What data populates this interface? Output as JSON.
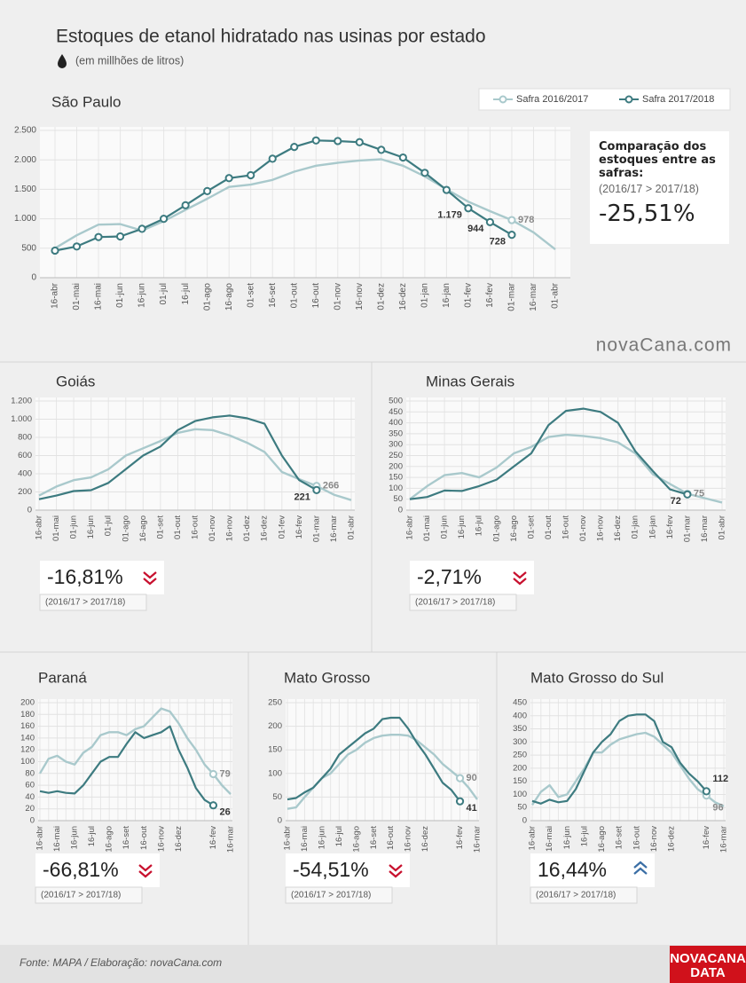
{
  "header": {
    "title": "Estoques de etanol hidratado nas usinas por estado",
    "subtitle": "(em millhões de litros)"
  },
  "watermark": "novaCana.com",
  "footer": {
    "source": "Fonte: MAPA  / Elaboração: novaCana.com",
    "logo": [
      "NOVACANA",
      "DATA"
    ]
  },
  "chart_data": [
    {
      "type": "line",
      "title": "São Paulo",
      "legend": "top-right",
      "grid": true,
      "comparison_title": "Comparação dos estoques entre as safras:",
      "change": "-25,51%",
      "change_note": "(2016/17 > 2017/18)",
      "trend": "down",
      "categories": [
        "16-abr",
        "01-mai",
        "16-mai",
        "01-jun",
        "16-jun",
        "01-jul",
        "16-jul",
        "01-ago",
        "16-ago",
        "01-set",
        "16-set",
        "01-out",
        "16-out",
        "01-nov",
        "16-nov",
        "01-dez",
        "16-dez",
        "01-jan",
        "16-jan",
        "01-fev",
        "16-fev",
        "01-mar",
        "16-mar",
        "01-abr"
      ],
      "ylim": [
        0,
        2500
      ],
      "yticks": [
        0,
        500,
        {
          "value": 1000,
          "label": "1.000"
        },
        {
          "value": 1500,
          "label": "1.500"
        },
        {
          "value": 2000,
          "label": "2.000"
        },
        {
          "value": 2500,
          "label": "2.500"
        }
      ],
      "series": [
        {
          "name": "Safra 2016/2017",
          "color": "#a9c9cc",
          "values": [
            500,
            720,
            900,
            910,
            800,
            960,
            1150,
            1340,
            1540,
            1580,
            1660,
            1800,
            1900,
            1950,
            1990,
            2010,
            1900,
            1720,
            1500,
            1290,
            1130,
            978,
            770,
            480
          ],
          "value_labels": [
            null,
            null,
            null,
            null,
            null,
            null,
            null,
            null,
            null,
            null,
            null,
            null,
            null,
            null,
            null,
            null,
            null,
            null,
            null,
            null,
            null,
            "978",
            null,
            null
          ]
        },
        {
          "name": "Safra 2017/2018",
          "color": "#3d7b80",
          "markers": true,
          "values": [
            460,
            530,
            690,
            700,
            830,
            1000,
            1230,
            1470,
            1690,
            1740,
            2020,
            2220,
            2330,
            2320,
            2300,
            2170,
            2040,
            1780,
            1490,
            1179,
            944,
            728,
            null,
            null
          ],
          "value_labels": [
            null,
            null,
            null,
            null,
            null,
            null,
            null,
            null,
            null,
            null,
            null,
            null,
            null,
            null,
            null,
            null,
            null,
            null,
            null,
            "1.179",
            "944",
            "728",
            null,
            null
          ]
        }
      ]
    },
    {
      "type": "line",
      "title": "Goiás",
      "grid": true,
      "change": "-16,81%",
      "change_note": "(2016/17 > 2017/18)",
      "trend": "down",
      "categories": [
        "16-abr",
        "01-mai",
        "01-jun",
        "16-jun",
        "01-jul",
        "01-ago",
        "16-ago",
        "01-set",
        "01-out",
        "16-out",
        "01-nov",
        "16-nov",
        "01-dez",
        "16-dez",
        "01-fev",
        "16-fev",
        "01-mar",
        "16-mar",
        "01-abr"
      ],
      "ylim": [
        0,
        1200
      ],
      "yticks": [
        0,
        200,
        400,
        600,
        800,
        {
          "value": 1000,
          "label": "1.000"
        },
        {
          "value": 1200,
          "label": "1.200"
        }
      ],
      "series": [
        {
          "name": "Safra 2016/2017",
          "color": "#a9c9cc",
          "values": [
            160,
            260,
            330,
            360,
            450,
            600,
            680,
            760,
            850,
            890,
            880,
            820,
            740,
            640,
            420,
            340,
            266,
            170,
            110
          ],
          "value_labels": [
            null,
            null,
            null,
            null,
            null,
            null,
            null,
            null,
            null,
            null,
            null,
            null,
            null,
            null,
            null,
            null,
            "266",
            null,
            null
          ]
        },
        {
          "name": "Safra 2017/2018",
          "color": "#3d7b80",
          "values": [
            120,
            160,
            210,
            220,
            300,
            450,
            600,
            700,
            880,
            980,
            1020,
            1040,
            1010,
            950,
            600,
            330,
            221,
            null,
            null
          ],
          "value_labels": [
            null,
            null,
            null,
            null,
            null,
            null,
            null,
            null,
            null,
            null,
            null,
            null,
            null,
            null,
            null,
            null,
            "221",
            null,
            null
          ]
        }
      ]
    },
    {
      "type": "line",
      "title": "Minas Gerais",
      "grid": true,
      "change": "-2,71%",
      "change_note": "(2016/17 > 2017/18)",
      "trend": "down",
      "categories": [
        "16-abr",
        "01-mai",
        "01-jun",
        "16-jun",
        "16-jul",
        "01-ago",
        "16-ago",
        "01-set",
        "01-out",
        "16-out",
        "01-nov",
        "16-nov",
        "16-dez",
        "01-jan",
        "16-jan",
        "16-fev",
        "01-mar",
        "16-mar",
        "01-abr"
      ],
      "ylim": [
        0,
        500
      ],
      "yticks": [
        0,
        50,
        100,
        150,
        200,
        250,
        300,
        350,
        400,
        450,
        500
      ],
      "series": [
        {
          "name": "Safra 2016/2017",
          "color": "#a9c9cc",
          "values": [
            50,
            110,
            160,
            170,
            150,
            195,
            260,
            290,
            335,
            345,
            340,
            330,
            310,
            260,
            165,
            120,
            75,
            55,
            35
          ],
          "value_labels": [
            null,
            null,
            null,
            null,
            null,
            null,
            null,
            null,
            null,
            null,
            null,
            null,
            null,
            null,
            null,
            null,
            "75",
            null,
            null
          ]
        },
        {
          "name": "Safra 2017/2018",
          "color": "#3d7b80",
          "values": [
            50,
            60,
            90,
            88,
            110,
            140,
            200,
            260,
            390,
            455,
            465,
            450,
            400,
            270,
            180,
            95,
            72,
            null,
            null
          ],
          "value_labels": [
            null,
            null,
            null,
            null,
            null,
            null,
            null,
            null,
            null,
            null,
            null,
            null,
            null,
            null,
            null,
            null,
            "72",
            null,
            null
          ]
        }
      ]
    },
    {
      "type": "line",
      "title": "Paraná",
      "grid": true,
      "change": "-66,81%",
      "change_note": "(2016/17 > 2017/18)",
      "trend": "down",
      "categories": [
        "16-abr",
        null,
        "16-mai",
        null,
        "16-jun",
        null,
        "16-jul",
        null,
        "16-ago",
        null,
        "16-set",
        null,
        "16-out",
        null,
        "16-nov",
        null,
        "16-dez",
        null,
        null,
        null,
        "16-fev",
        null,
        "16-mar"
      ],
      "ylim": [
        0,
        200
      ],
      "yticks": [
        0,
        20,
        40,
        60,
        80,
        100,
        120,
        140,
        160,
        180,
        200
      ],
      "series": [
        {
          "name": "Safra 2016/2017",
          "color": "#a9c9cc",
          "values": [
            80,
            105,
            110,
            100,
            95,
            115,
            125,
            145,
            150,
            150,
            145,
            155,
            160,
            175,
            190,
            185,
            165,
            140,
            120,
            95,
            79,
            60,
            45
          ],
          "value_labels": [
            null,
            null,
            null,
            null,
            null,
            null,
            null,
            null,
            null,
            null,
            null,
            null,
            null,
            null,
            null,
            null,
            null,
            null,
            null,
            null,
            "79",
            null,
            null
          ]
        },
        {
          "name": "Safra 2017/2018",
          "color": "#3d7b80",
          "values": [
            50,
            47,
            50,
            47,
            46,
            60,
            80,
            100,
            108,
            108,
            130,
            150,
            140,
            145,
            150,
            160,
            120,
            90,
            55,
            35,
            26,
            null,
            null
          ],
          "value_labels": [
            null,
            null,
            null,
            null,
            null,
            null,
            null,
            null,
            null,
            null,
            null,
            null,
            null,
            null,
            null,
            null,
            null,
            null,
            null,
            null,
            "26",
            null,
            null
          ]
        }
      ]
    },
    {
      "type": "line",
      "title": "Mato Grosso",
      "grid": true,
      "change": "-54,51%",
      "change_note": "(2016/17 > 2017/18)",
      "trend": "down",
      "categories": [
        "16-abr",
        null,
        "16-mai",
        null,
        "16-jun",
        null,
        "16-jul",
        null,
        "16-ago",
        null,
        "16-set",
        null,
        "16-out",
        null,
        "16-nov",
        null,
        "16-dez",
        null,
        null,
        null,
        "16-fev",
        null,
        "16-mar"
      ],
      "ylim": [
        0,
        250
      ],
      "yticks": [
        0,
        50,
        100,
        150,
        200,
        250
      ],
      "series": [
        {
          "name": "Safra 2016/2017",
          "color": "#a9c9cc",
          "values": [
            25,
            28,
            50,
            70,
            90,
            100,
            120,
            140,
            150,
            165,
            175,
            180,
            182,
            182,
            180,
            170,
            155,
            140,
            120,
            105,
            90,
            70,
            45
          ],
          "value_labels": [
            null,
            null,
            null,
            null,
            null,
            null,
            null,
            null,
            null,
            null,
            null,
            null,
            null,
            null,
            null,
            null,
            null,
            null,
            null,
            null,
            "90",
            null,
            null
          ]
        },
        {
          "name": "Safra 2017/2018",
          "color": "#3d7b80",
          "values": [
            45,
            48,
            60,
            70,
            90,
            110,
            140,
            155,
            170,
            185,
            195,
            215,
            218,
            218,
            195,
            165,
            140,
            110,
            80,
            65,
            41,
            null,
            null
          ],
          "value_labels": [
            null,
            null,
            null,
            null,
            null,
            null,
            null,
            null,
            null,
            null,
            null,
            null,
            null,
            null,
            null,
            null,
            null,
            null,
            null,
            null,
            "41",
            null,
            null
          ]
        }
      ]
    },
    {
      "type": "line",
      "title": "Mato Grosso do Sul",
      "grid": true,
      "change": "16,44%",
      "change_note": "(2016/17 > 2017/18)",
      "trend": "up",
      "categories": [
        "16-abr",
        null,
        "16-mai",
        null,
        "16-jun",
        null,
        "16-jul",
        null,
        "16-ago",
        null,
        "16-set",
        null,
        "16-out",
        null,
        "16-nov",
        null,
        "16-dez",
        null,
        null,
        null,
        "16-fev",
        null,
        "16-mar"
      ],
      "ylim": [
        0,
        450
      ],
      "yticks": [
        0,
        50,
        100,
        150,
        200,
        250,
        300,
        350,
        400,
        450
      ],
      "series": [
        {
          "name": "Safra 2016/2017",
          "color": "#a9c9cc",
          "values": [
            60,
            110,
            135,
            90,
            100,
            150,
            200,
            260,
            260,
            290,
            310,
            320,
            330,
            335,
            320,
            290,
            260,
            210,
            160,
            120,
            96,
            70,
            55
          ],
          "value_labels": [
            null,
            null,
            null,
            null,
            null,
            null,
            null,
            null,
            null,
            null,
            null,
            null,
            null,
            null,
            null,
            null,
            null,
            null,
            null,
            null,
            "96",
            null,
            null
          ]
        },
        {
          "name": "Safra 2017/2018",
          "color": "#3d7b80",
          "values": [
            75,
            65,
            80,
            70,
            75,
            120,
            190,
            260,
            300,
            330,
            380,
            400,
            405,
            405,
            380,
            300,
            280,
            220,
            180,
            150,
            112,
            null,
            null
          ],
          "value_labels": [
            null,
            null,
            null,
            null,
            null,
            null,
            null,
            null,
            null,
            null,
            null,
            null,
            null,
            null,
            null,
            null,
            null,
            null,
            null,
            null,
            "112",
            null,
            null
          ]
        }
      ]
    }
  ]
}
